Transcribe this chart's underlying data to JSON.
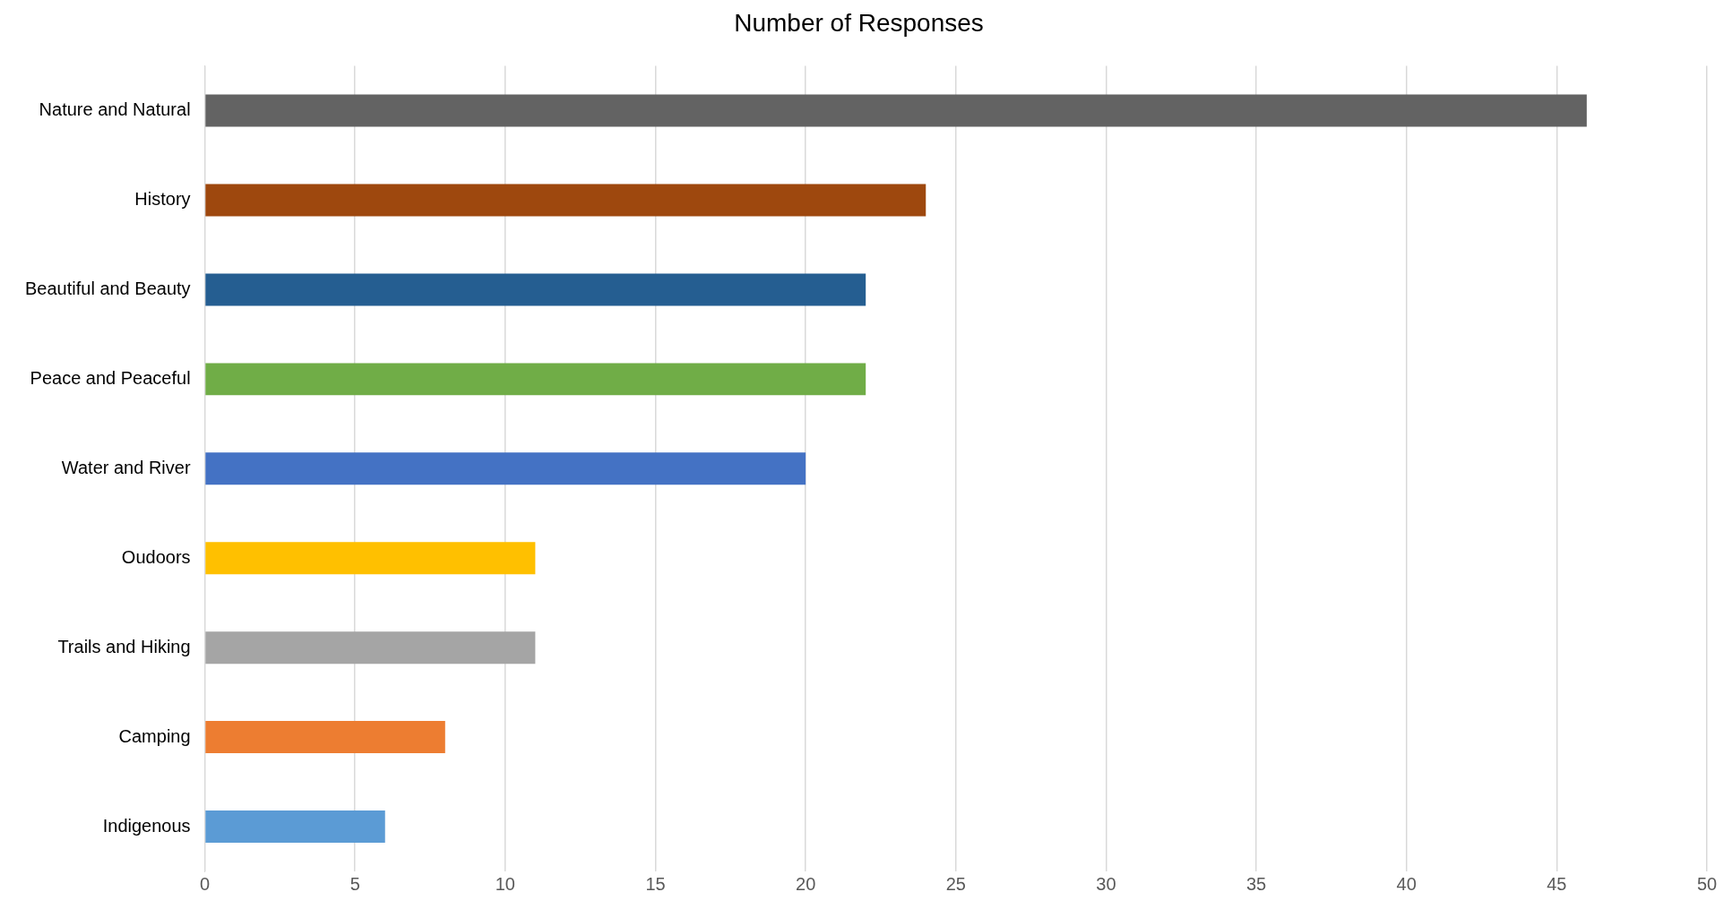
{
  "chart_data": {
    "type": "bar",
    "orientation": "horizontal",
    "title": "Number of Responses",
    "categories": [
      "Nature and Natural",
      "History",
      "Beautiful and Beauty",
      "Peace and Peaceful",
      "Water and River",
      "Oudoors",
      "Trails and Hiking",
      "Camping",
      "Indigenous"
    ],
    "values": [
      46,
      24,
      22,
      22,
      20,
      11,
      11,
      8,
      6
    ],
    "colors": [
      "#636363",
      "#9e480e",
      "#255e91",
      "#70ad47",
      "#4472c4",
      "#ffc000",
      "#a5a5a5",
      "#ed7d31",
      "#5b9bd5"
    ],
    "xlim": [
      0,
      50
    ],
    "xticks": [
      0,
      5,
      10,
      15,
      20,
      25,
      30,
      35,
      40,
      45,
      50
    ],
    "grid": "x",
    "legend": false
  }
}
